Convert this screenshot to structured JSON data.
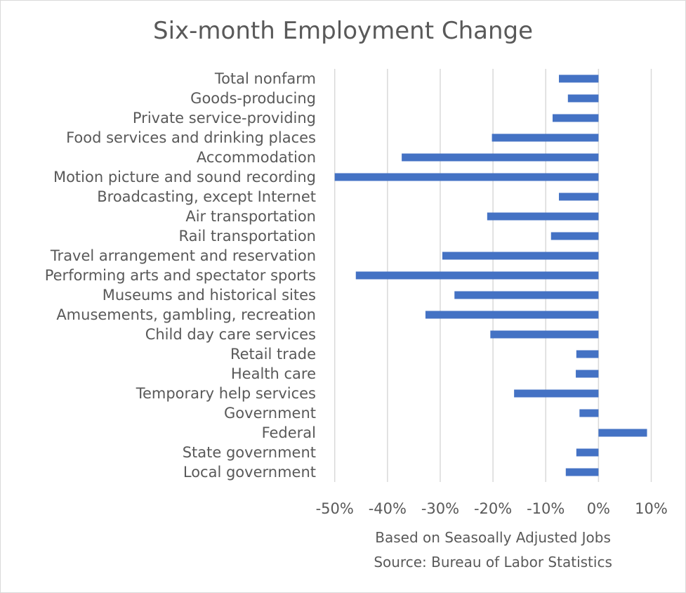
{
  "chart_data": {
    "type": "bar",
    "orientation": "horizontal",
    "title": "Six-month Employment Change",
    "xlabel_lines": [
      "Based on Seasoally Adjusted Jobs",
      "Source: Bureau of Labor Statistics"
    ],
    "ylabel": "",
    "xlim": [
      -0.5,
      0.1
    ],
    "x_ticks": [
      -0.5,
      -0.4,
      -0.3,
      -0.2,
      -0.1,
      0,
      0.1
    ],
    "x_tick_labels": [
      "-50%",
      "-40%",
      "-30%",
      "-20%",
      "-10%",
      "0%",
      "10%"
    ],
    "grid": true,
    "legend": "none",
    "bar_color": "#4472c4",
    "categories": [
      "Total nonfarm",
      "Goods-producing",
      "Private service-providing",
      "Food services and drinking places",
      "Accommodation",
      "Motion picture and sound recording",
      "Broadcasting, except Internet",
      "Air transportation",
      "Rail transportation",
      "Travel arrangement and reservation",
      "Performing arts and spectator sports",
      "Museums and historical sites",
      "Amusements, gambling, recreation",
      "Child day care services",
      "Retail trade",
      "Health care",
      "Temporary help services",
      "Government",
      "Federal",
      "State government",
      "Local government"
    ],
    "values": [
      -0.075,
      -0.058,
      -0.087,
      -0.202,
      -0.373,
      -0.5,
      -0.075,
      -0.211,
      -0.09,
      -0.296,
      -0.46,
      -0.273,
      -0.328,
      -0.205,
      -0.042,
      -0.043,
      -0.16,
      -0.036,
      0.092,
      -0.042,
      -0.062
    ]
  }
}
